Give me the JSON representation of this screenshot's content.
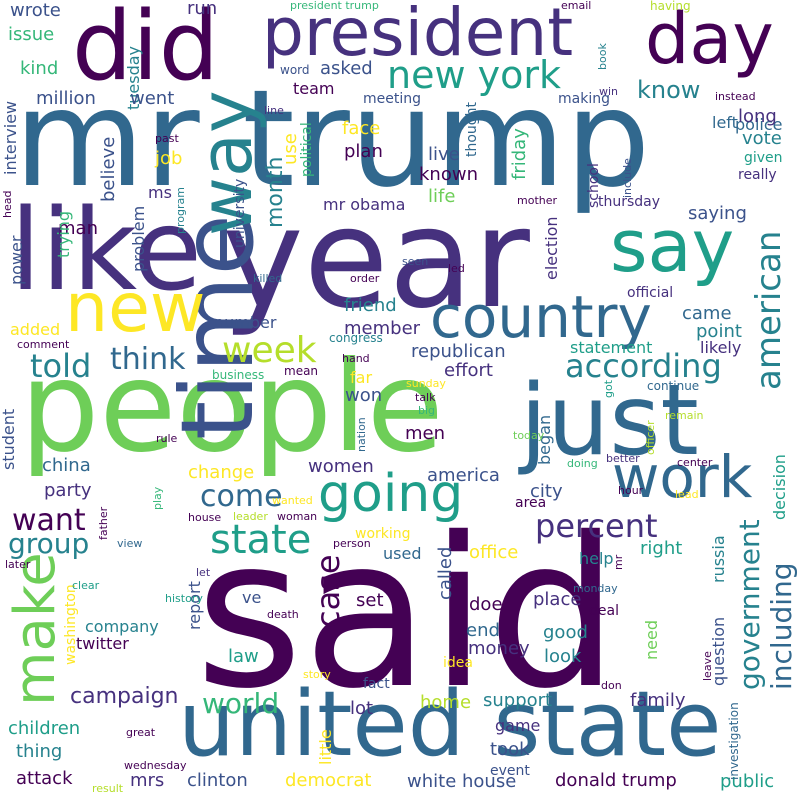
{
  "colors": {
    "background": "#ffffff",
    "palette": {
      "a": "#440154",
      "b": "#46317e",
      "c": "#3b528b",
      "d": "#31688e",
      "e": "#26828e",
      "f": "#1f9e89",
      "g": "#35b779",
      "h": "#6ece58",
      "i": "#b5de2b",
      "j": "#fde725"
    }
  },
  "words": [
    {
      "text": "said",
      "c": "a"
    },
    {
      "text": "people",
      "c": "h"
    },
    {
      "text": "year",
      "c": "b"
    },
    {
      "text": "mr trump",
      "c": "d"
    },
    {
      "text": "like",
      "c": "b"
    },
    {
      "text": "time",
      "c": "c"
    },
    {
      "text": "just",
      "c": "d"
    },
    {
      "text": "united state",
      "c": "d"
    },
    {
      "text": "did",
      "c": "a"
    },
    {
      "text": "president",
      "c": "b"
    },
    {
      "text": "day",
      "c": "a"
    },
    {
      "text": "way",
      "c": "e"
    },
    {
      "text": "say",
      "c": "f"
    },
    {
      "text": "new",
      "c": "j"
    },
    {
      "text": "make",
      "c": "h"
    },
    {
      "text": "country",
      "c": "d"
    },
    {
      "text": "work",
      "c": "d"
    },
    {
      "text": "going",
      "c": "f"
    },
    {
      "text": "state",
      "c": "f"
    },
    {
      "text": "new york",
      "c": "f"
    },
    {
      "text": "american",
      "c": "e"
    },
    {
      "text": "week",
      "c": "i"
    },
    {
      "text": "according",
      "c": "e"
    },
    {
      "text": "think",
      "c": "d"
    },
    {
      "text": "told",
      "c": "e"
    },
    {
      "text": "come",
      "c": "d"
    },
    {
      "text": "percent",
      "c": "b"
    },
    {
      "text": "including",
      "c": "d"
    },
    {
      "text": "government",
      "c": "e"
    },
    {
      "text": "want",
      "c": "a"
    },
    {
      "text": "group",
      "c": "e"
    },
    {
      "text": "world",
      "c": "g"
    },
    {
      "text": "case",
      "c": "a"
    },
    {
      "text": "campaign",
      "c": "b"
    },
    {
      "text": "know",
      "c": "e"
    },
    {
      "text": "month",
      "c": "e"
    },
    {
      "text": "wrote",
      "c": "c"
    },
    {
      "text": "issue",
      "c": "g"
    },
    {
      "text": "kind",
      "c": "g"
    },
    {
      "text": "run",
      "c": "b"
    },
    {
      "text": "tuesday",
      "c": "e"
    },
    {
      "text": "left",
      "c": "d"
    },
    {
      "text": "police",
      "c": "d"
    },
    {
      "text": "million",
      "c": "c"
    },
    {
      "text": "went",
      "c": "c"
    },
    {
      "text": "asked",
      "c": "c"
    },
    {
      "text": "meeting",
      "c": "c"
    },
    {
      "text": "making",
      "c": "c"
    },
    {
      "text": "team",
      "c": "a"
    },
    {
      "text": "word",
      "c": "c"
    },
    {
      "text": "interview",
      "c": "c"
    },
    {
      "text": "thought",
      "c": "d"
    },
    {
      "text": "long",
      "c": "b"
    },
    {
      "text": "vote",
      "c": "e"
    },
    {
      "text": "given",
      "c": "f"
    },
    {
      "text": "really",
      "c": "b"
    },
    {
      "text": "political",
      "c": "g"
    },
    {
      "text": "face",
      "c": "j"
    },
    {
      "text": "plan",
      "c": "a"
    },
    {
      "text": "friday",
      "c": "g"
    },
    {
      "text": "live",
      "c": "c"
    },
    {
      "text": "known",
      "c": "a"
    },
    {
      "text": "use",
      "c": "j"
    },
    {
      "text": "job",
      "c": "j"
    },
    {
      "text": "believe",
      "c": "c"
    },
    {
      "text": "ms",
      "c": "b"
    },
    {
      "text": "man",
      "c": "a"
    },
    {
      "text": "university",
      "c": "c"
    },
    {
      "text": "mr obama",
      "c": "b"
    },
    {
      "text": "life",
      "c": "h"
    },
    {
      "text": "school",
      "c": "b"
    },
    {
      "text": "thursday",
      "c": "b"
    },
    {
      "text": "saying",
      "c": "c"
    },
    {
      "text": "problem",
      "c": "c"
    },
    {
      "text": "trying",
      "c": "g"
    },
    {
      "text": "power",
      "c": "c"
    },
    {
      "text": "election",
      "c": "b"
    },
    {
      "text": "came",
      "c": "d"
    },
    {
      "text": "official",
      "c": "b"
    },
    {
      "text": "friend",
      "c": "e"
    },
    {
      "text": "point",
      "c": "e"
    },
    {
      "text": "number",
      "c": "c"
    },
    {
      "text": "member",
      "c": "b"
    },
    {
      "text": "added",
      "c": "j"
    },
    {
      "text": "republican",
      "c": "c"
    },
    {
      "text": "statement",
      "c": "f"
    },
    {
      "text": "likely",
      "c": "b"
    },
    {
      "text": "effort",
      "c": "b"
    },
    {
      "text": "continue",
      "c": "d"
    },
    {
      "text": "far",
      "c": "j"
    },
    {
      "text": "won",
      "c": "c"
    },
    {
      "text": "student",
      "c": "c"
    },
    {
      "text": "men",
      "c": "a"
    },
    {
      "text": "began",
      "c": "d"
    },
    {
      "text": "decision",
      "c": "f"
    },
    {
      "text": "china",
      "c": "d"
    },
    {
      "text": "women",
      "c": "b"
    },
    {
      "text": "america",
      "c": "c"
    },
    {
      "text": "city",
      "c": "c"
    },
    {
      "text": "change",
      "c": "j"
    },
    {
      "text": "party",
      "c": "b"
    },
    {
      "text": "area",
      "c": "a"
    },
    {
      "text": "right",
      "c": "f"
    },
    {
      "text": "russia",
      "c": "e"
    },
    {
      "text": "working",
      "c": "j"
    },
    {
      "text": "used",
      "c": "d"
    },
    {
      "text": "office",
      "c": "j"
    },
    {
      "text": "help",
      "c": "e"
    },
    {
      "text": "called",
      "c": "c"
    },
    {
      "text": "washington",
      "c": "j"
    },
    {
      "text": "company",
      "c": "e"
    },
    {
      "text": "report",
      "c": "c"
    },
    {
      "text": "set",
      "c": "a"
    },
    {
      "text": "doe",
      "c": "a"
    },
    {
      "text": "place",
      "c": "b"
    },
    {
      "text": "deal",
      "c": "a"
    },
    {
      "text": "twitter",
      "c": "a"
    },
    {
      "text": "end",
      "c": "d"
    },
    {
      "text": "good",
      "c": "e"
    },
    {
      "text": "need",
      "c": "h"
    },
    {
      "text": "question",
      "c": "c"
    },
    {
      "text": "law",
      "c": "f"
    },
    {
      "text": "money",
      "c": "b"
    },
    {
      "text": "look",
      "c": "e"
    },
    {
      "text": "fact",
      "c": "c"
    },
    {
      "text": "idea",
      "c": "j"
    },
    {
      "text": "little",
      "c": "j"
    },
    {
      "text": "home",
      "c": "i"
    },
    {
      "text": "support",
      "c": "e"
    },
    {
      "text": "family",
      "c": "b"
    },
    {
      "text": "children",
      "c": "f"
    },
    {
      "text": "lot",
      "c": "b"
    },
    {
      "text": "game",
      "c": "b"
    },
    {
      "text": "thing",
      "c": "e"
    },
    {
      "text": "took",
      "c": "c"
    },
    {
      "text": "attack",
      "c": "a"
    },
    {
      "text": "mrs",
      "c": "b"
    },
    {
      "text": "clinton",
      "c": "c"
    },
    {
      "text": "democrat",
      "c": "j"
    },
    {
      "text": "white house",
      "c": "c"
    },
    {
      "text": "donald trump",
      "c": "a"
    },
    {
      "text": "public",
      "c": "f"
    },
    {
      "text": "event",
      "c": "c"
    },
    {
      "text": "investigation",
      "c": "d"
    },
    {
      "text": "president trump",
      "c": "g"
    },
    {
      "text": "email",
      "c": "a"
    },
    {
      "text": "having",
      "c": "i"
    },
    {
      "text": "book",
      "c": "e"
    },
    {
      "text": "win",
      "c": "b"
    },
    {
      "text": "instead",
      "c": "a"
    },
    {
      "text": "line",
      "c": "b"
    },
    {
      "text": "past",
      "c": "a"
    },
    {
      "text": "program",
      "c": "e"
    },
    {
      "text": "head",
      "c": "a"
    },
    {
      "text": "mother",
      "c": "a"
    },
    {
      "text": "include",
      "c": "c"
    },
    {
      "text": "killed",
      "c": "d"
    },
    {
      "text": "seen",
      "c": "c"
    },
    {
      "text": "order",
      "c": "a"
    },
    {
      "text": "led",
      "c": "a"
    },
    {
      "text": "congress",
      "c": "e"
    },
    {
      "text": "comment",
      "c": "a"
    },
    {
      "text": "hand",
      "c": "a"
    },
    {
      "text": "business",
      "c": "g"
    },
    {
      "text": "mean",
      "c": "a"
    },
    {
      "text": "sunday",
      "c": "j"
    },
    {
      "text": "nation",
      "c": "d"
    },
    {
      "text": "talk",
      "c": "a"
    },
    {
      "text": "big",
      "c": "g"
    },
    {
      "text": "got",
      "c": "f"
    },
    {
      "text": "officer",
      "c": "i"
    },
    {
      "text": "remain",
      "c": "i"
    },
    {
      "text": "better",
      "c": "b"
    },
    {
      "text": "rule",
      "c": "a"
    },
    {
      "text": "today",
      "c": "h"
    },
    {
      "text": "doing",
      "c": "g"
    },
    {
      "text": "center",
      "c": "a"
    },
    {
      "text": "play",
      "c": "g"
    },
    {
      "text": "wanted",
      "c": "j"
    },
    {
      "text": "leader",
      "c": "i"
    },
    {
      "text": "woman",
      "c": "a"
    },
    {
      "text": "house",
      "c": "a"
    },
    {
      "text": "person",
      "c": "a"
    },
    {
      "text": "hour",
      "c": "a"
    },
    {
      "text": "lead",
      "c": "j"
    },
    {
      "text": "father",
      "c": "a"
    },
    {
      "text": "view",
      "c": "d"
    },
    {
      "text": "later",
      "c": "a"
    },
    {
      "text": "let",
      "c": "b"
    },
    {
      "text": "ve",
      "c": "c"
    },
    {
      "text": "mr",
      "c": "a"
    },
    {
      "text": "monday",
      "c": "d"
    },
    {
      "text": "clear",
      "c": "f"
    },
    {
      "text": "history",
      "c": "f"
    },
    {
      "text": "death",
      "c": "a"
    },
    {
      "text": "story",
      "c": "j"
    },
    {
      "text": "don",
      "c": "a"
    },
    {
      "text": "leave",
      "c": "a"
    },
    {
      "text": "great",
      "c": "a"
    },
    {
      "text": "wednesday",
      "c": "a"
    },
    {
      "text": "result",
      "c": "i"
    }
  ]
}
